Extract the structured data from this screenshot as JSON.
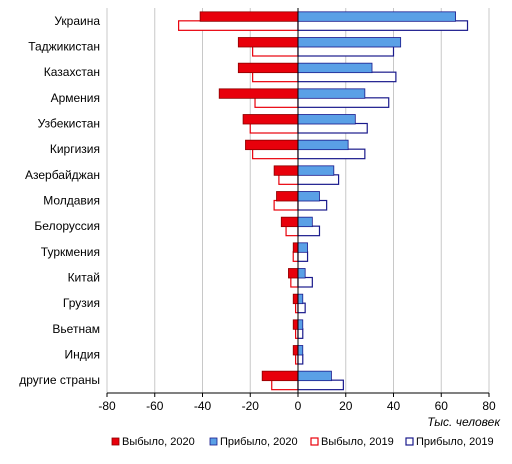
{
  "chart_data": {
    "type": "bar",
    "orientation": "horizontal",
    "categories": [
      "Украина",
      "Таджикистан",
      "Казахстан",
      "Армения",
      "Узбекистан",
      "Киргизия",
      "Азербайджан",
      "Молдавия",
      "Белоруссия",
      "Туркмения",
      "Китай",
      "Грузия",
      "Вьетнам",
      "Индия",
      "другие страны"
    ],
    "series": [
      {
        "name": "Выбыло, 2020",
        "color": "#e8000b",
        "style": "filled",
        "values": [
          -41,
          -25,
          -25,
          -33,
          -23,
          -22,
          -10,
          -9,
          -7,
          -2,
          -4,
          -2,
          -2,
          -2,
          -15
        ]
      },
      {
        "name": "Прибыло, 2020",
        "color": "#5aa0e6",
        "style": "filled",
        "values": [
          66,
          43,
          31,
          28,
          24,
          21,
          15,
          9,
          6,
          4,
          3,
          2,
          2,
          2,
          14
        ]
      },
      {
        "name": "Выбыло, 2019",
        "color": "#e8000b",
        "style": "outline",
        "values": [
          -50,
          -19,
          -19,
          -18,
          -20,
          -19,
          -8,
          -10,
          -5,
          -2,
          -3,
          -1,
          -1,
          -1,
          -11
        ]
      },
      {
        "name": "Прибыло, 2019",
        "color": "#1a1a8c",
        "style": "outline",
        "values": [
          71,
          40,
          41,
          38,
          29,
          28,
          17,
          12,
          9,
          4,
          6,
          3,
          2,
          2,
          19
        ]
      }
    ],
    "xlim": [
      -80,
      80
    ],
    "xticks": [
      "-80",
      "-60",
      "-40",
      "-20",
      "0",
      "20",
      "40",
      "60",
      "80"
    ],
    "xlabel": "Тыс. человек",
    "grid": "vertical",
    "legend_position": "bottom"
  }
}
